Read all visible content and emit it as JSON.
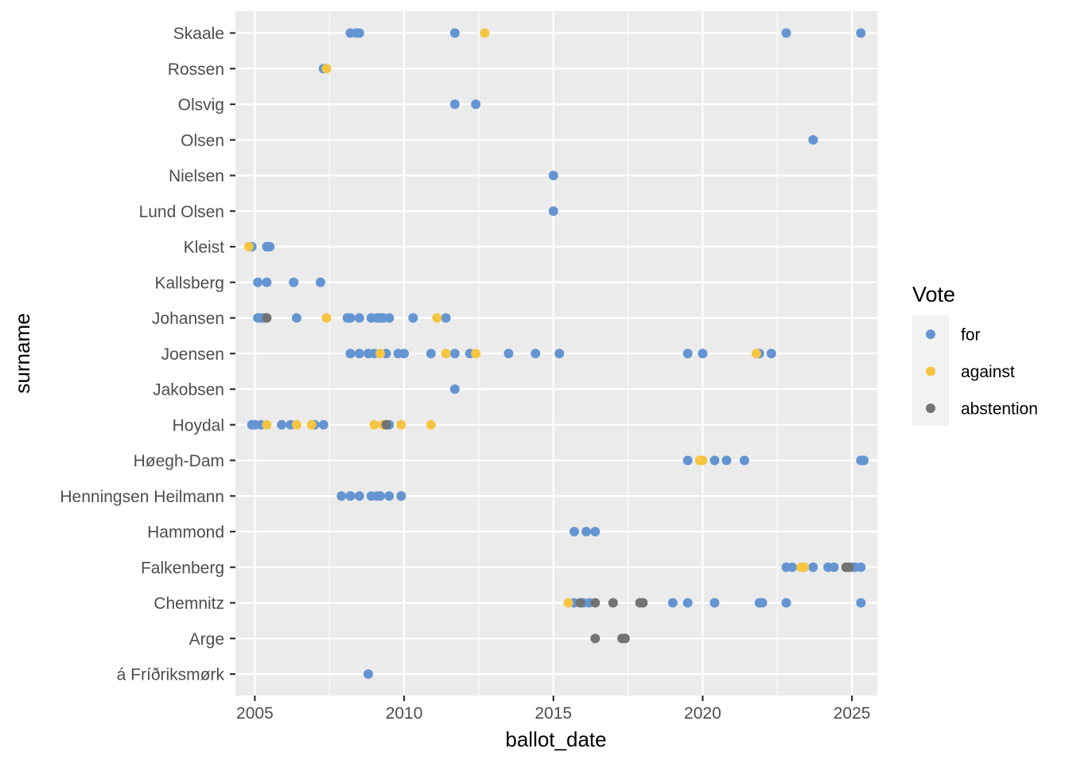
{
  "chart_data": {
    "type": "scatter",
    "xlabel": "ballot_date",
    "ylabel": "surname",
    "x_ticks": [
      2005,
      2010,
      2015,
      2020,
      2025
    ],
    "xlim": [
      2004.35,
      2025.85
    ],
    "grid": true,
    "legend_position": "right",
    "legend": {
      "title": "Vote",
      "entries": [
        {
          "key": "for",
          "label": "for",
          "color": "#6495d2"
        },
        {
          "key": "against",
          "label": "against",
          "color": "#f5c542"
        },
        {
          "key": "abstention",
          "label": "abstention",
          "color": "#737373"
        }
      ]
    },
    "categories": [
      "Skaale",
      "Rossen",
      "Olsvig",
      "Olsen",
      "Nielsen",
      "Lund Olsen",
      "Kleist",
      "Kallsberg",
      "Johansen",
      "Joensen",
      "Jakobsen",
      "Hoydal",
      "Høegh-Dam",
      "Henningsen Heilmann",
      "Hammond",
      "Falkenberg",
      "Chemnitz",
      "Arge",
      "á Fríðriksmørk"
    ],
    "series": [
      {
        "name": "for",
        "points": [
          {
            "surname": "Skaale",
            "x": [
              2008.2,
              2008.4,
              2008.5,
              2011.7,
              2022.8,
              2025.3
            ]
          },
          {
            "surname": "Rossen",
            "x": [
              2007.3
            ]
          },
          {
            "surname": "Olsvig",
            "x": [
              2011.7,
              2012.4
            ]
          },
          {
            "surname": "Olsen",
            "x": [
              2023.7
            ]
          },
          {
            "surname": "Nielsen",
            "x": [
              2015.0
            ]
          },
          {
            "surname": "Lund Olsen",
            "x": [
              2015.0
            ]
          },
          {
            "surname": "Kleist",
            "x": [
              2004.9,
              2005.4,
              2005.5
            ]
          },
          {
            "surname": "Kallsberg",
            "x": [
              2005.1,
              2005.4,
              2006.3,
              2007.2
            ]
          },
          {
            "surname": "Johansen",
            "x": [
              2005.1,
              2005.2,
              2005.3,
              2006.4,
              2008.1,
              2008.2,
              2008.5,
              2008.9,
              2009.1,
              2009.2,
              2009.3,
              2009.5,
              2010.3,
              2011.4
            ]
          },
          {
            "surname": "Joensen",
            "x": [
              2008.2,
              2008.5,
              2008.8,
              2009.0,
              2009.4,
              2009.8,
              2010.0,
              2010.9,
              2011.7,
              2012.2,
              2013.5,
              2014.4,
              2015.2,
              2019.5,
              2020.0,
              2021.9,
              2022.3
            ]
          },
          {
            "surname": "Jakobsen",
            "x": [
              2011.7
            ]
          },
          {
            "surname": "Hoydal",
            "x": [
              2004.9,
              2005.0,
              2005.2,
              2005.9,
              2006.2,
              2007.0,
              2007.3,
              2009.5
            ]
          },
          {
            "surname": "Høegh-Dam",
            "x": [
              2019.5,
              2020.4,
              2020.8,
              2021.4,
              2025.3,
              2025.4
            ]
          },
          {
            "surname": "Henningsen Heilmann",
            "x": [
              2007.9,
              2008.2,
              2008.5,
              2008.9,
              2009.1,
              2009.2,
              2009.5,
              2009.9
            ]
          },
          {
            "surname": "Hammond",
            "x": [
              2015.7,
              2016.1,
              2016.4
            ]
          },
          {
            "surname": "Falkenberg",
            "x": [
              2022.8,
              2023.0,
              2023.7,
              2024.2,
              2024.4,
              2025.0,
              2025.1,
              2025.3
            ]
          },
          {
            "surname": "Chemnitz",
            "x": [
              2015.7,
              2016.0,
              2016.2,
              2019.0,
              2019.5,
              2020.4,
              2021.9,
              2022.0,
              2022.8,
              2025.3
            ]
          },
          {
            "surname": "á Fríðriksmørk",
            "x": [
              2008.8
            ]
          }
        ]
      },
      {
        "name": "against",
        "points": [
          {
            "surname": "Skaale",
            "x": [
              2012.7
            ]
          },
          {
            "surname": "Rossen",
            "x": [
              2007.4
            ]
          },
          {
            "surname": "Kleist",
            "x": [
              2004.8
            ]
          },
          {
            "surname": "Johansen",
            "x": [
              2007.4,
              2011.1
            ]
          },
          {
            "surname": "Joensen",
            "x": [
              2009.2,
              2011.4,
              2012.4,
              2021.8
            ]
          },
          {
            "surname": "Hoydal",
            "x": [
              2005.4,
              2006.4,
              2006.9,
              2009.0,
              2009.3,
              2009.9,
              2010.9
            ]
          },
          {
            "surname": "Høegh-Dam",
            "x": [
              2019.9,
              2020.0
            ]
          },
          {
            "surname": "Falkenberg",
            "x": [
              2023.3,
              2023.4
            ]
          },
          {
            "surname": "Chemnitz",
            "x": [
              2015.5
            ]
          }
        ]
      },
      {
        "name": "abstention",
        "points": [
          {
            "surname": "Johansen",
            "x": [
              2005.4
            ]
          },
          {
            "surname": "Hoydal",
            "x": [
              2009.4
            ]
          },
          {
            "surname": "Falkenberg",
            "x": [
              2024.8,
              2024.9
            ]
          },
          {
            "surname": "Chemnitz",
            "x": [
              2015.9,
              2016.4,
              2017.0,
              2017.9,
              2018.0
            ]
          },
          {
            "surname": "Arge",
            "x": [
              2016.4,
              2017.3,
              2017.4
            ]
          }
        ]
      }
    ]
  }
}
